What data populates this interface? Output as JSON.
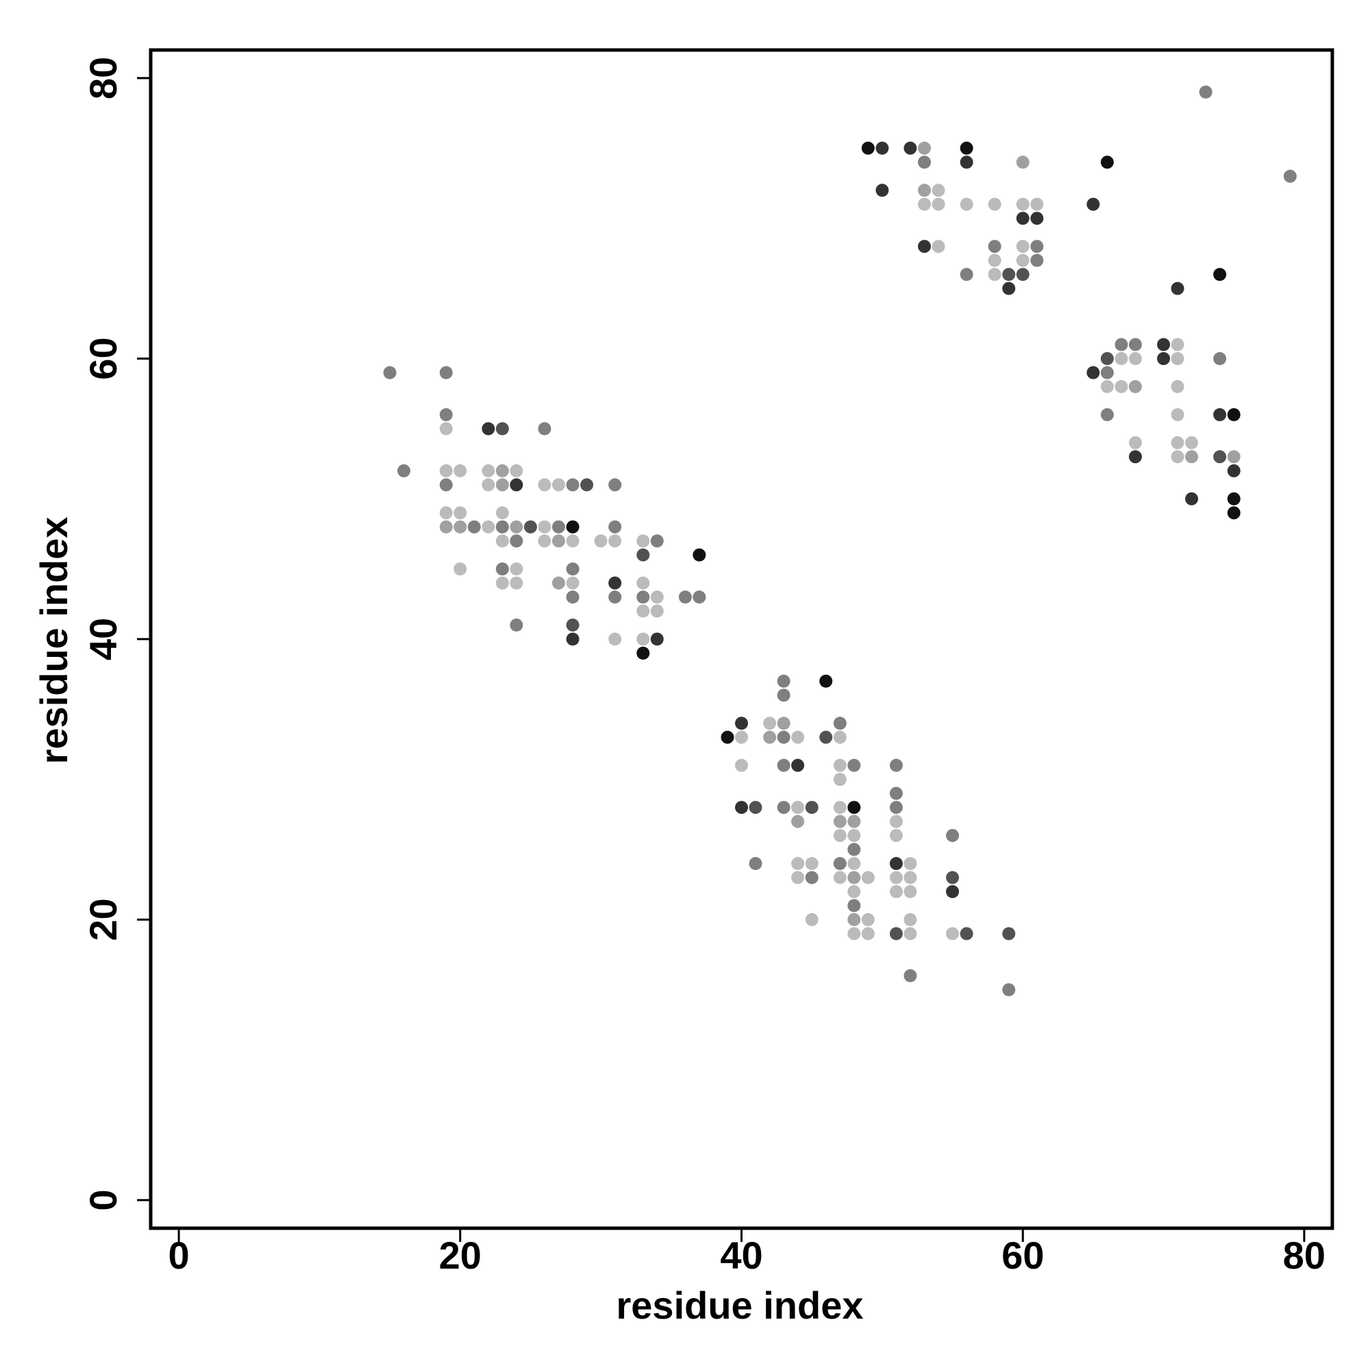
{
  "chart_data": {
    "type": "scatter",
    "title": "",
    "xlabel": "residue index",
    "ylabel": "residue index",
    "xlim": [
      -2,
      82
    ],
    "ylim": [
      -2,
      82
    ],
    "x_ticks": [
      0,
      20,
      40,
      60,
      80
    ],
    "y_ticks": [
      0,
      20,
      40,
      60,
      80
    ],
    "grid": false,
    "legend": "none",
    "shade_colors": {
      "1": "#bbbbbb",
      "2": "#a0a0a0",
      "3": "#7f7f7f",
      "4": "#525252",
      "5": "#333333",
      "6": "#111111"
    },
    "points": [
      [
        15,
        59,
        3
      ],
      [
        16,
        52,
        3
      ],
      [
        19,
        59,
        3
      ],
      [
        19,
        56,
        3
      ],
      [
        19,
        55,
        1
      ],
      [
        19,
        52,
        1
      ],
      [
        19,
        51,
        3
      ],
      [
        19,
        49,
        1
      ],
      [
        19,
        48,
        2
      ],
      [
        20,
        52,
        1
      ],
      [
        20,
        49,
        1
      ],
      [
        20,
        48,
        2
      ],
      [
        20,
        45,
        1
      ],
      [
        21,
        48,
        3
      ],
      [
        22,
        55,
        5
      ],
      [
        22,
        52,
        1
      ],
      [
        22,
        51,
        1
      ],
      [
        22,
        48,
        1
      ],
      [
        23,
        55,
        4
      ],
      [
        23,
        52,
        2
      ],
      [
        23,
        51,
        2
      ],
      [
        23,
        49,
        1
      ],
      [
        23,
        48,
        3
      ],
      [
        23,
        47,
        1
      ],
      [
        23,
        45,
        3
      ],
      [
        23,
        44,
        1
      ],
      [
        24,
        52,
        1
      ],
      [
        24,
        51,
        5
      ],
      [
        24,
        48,
        2
      ],
      [
        24,
        47,
        3
      ],
      [
        24,
        45,
        1
      ],
      [
        24,
        44,
        1
      ],
      [
        24,
        41,
        3
      ],
      [
        25,
        48,
        4
      ],
      [
        26,
        55,
        3
      ],
      [
        26,
        51,
        1
      ],
      [
        26,
        48,
        1
      ],
      [
        26,
        47,
        1
      ],
      [
        27,
        51,
        1
      ],
      [
        27,
        48,
        3
      ],
      [
        27,
        47,
        2
      ],
      [
        27,
        44,
        2
      ],
      [
        28,
        51,
        3
      ],
      [
        28,
        48,
        6
      ],
      [
        28,
        47,
        1
      ],
      [
        28,
        45,
        3
      ],
      [
        28,
        44,
        1
      ],
      [
        28,
        43,
        3
      ],
      [
        28,
        41,
        4
      ],
      [
        28,
        40,
        5
      ],
      [
        29,
        51,
        4
      ],
      [
        30,
        47,
        1
      ],
      [
        31,
        51,
        3
      ],
      [
        31,
        48,
        3
      ],
      [
        31,
        47,
        1
      ],
      [
        31,
        44,
        5
      ],
      [
        31,
        43,
        3
      ],
      [
        31,
        40,
        1
      ],
      [
        33,
        47,
        1
      ],
      [
        33,
        46,
        4
      ],
      [
        33,
        44,
        1
      ],
      [
        33,
        43,
        3
      ],
      [
        33,
        42,
        1
      ],
      [
        33,
        40,
        1
      ],
      [
        33,
        39,
        6
      ],
      [
        34,
        47,
        3
      ],
      [
        34,
        43,
        1
      ],
      [
        34,
        42,
        1
      ],
      [
        34,
        40,
        5
      ],
      [
        36,
        43,
        3
      ],
      [
        37,
        46,
        6
      ],
      [
        37,
        43,
        3
      ],
      [
        39,
        33,
        6
      ],
      [
        40,
        34,
        5
      ],
      [
        40,
        33,
        1
      ],
      [
        40,
        31,
        1
      ],
      [
        40,
        28,
        5
      ],
      [
        41,
        28,
        4
      ],
      [
        41,
        24,
        3
      ],
      [
        42,
        34,
        1
      ],
      [
        42,
        33,
        2
      ],
      [
        43,
        37,
        3
      ],
      [
        43,
        36,
        3
      ],
      [
        43,
        34,
        2
      ],
      [
        43,
        33,
        3
      ],
      [
        43,
        31,
        3
      ],
      [
        43,
        28,
        3
      ],
      [
        44,
        33,
        1
      ],
      [
        44,
        31,
        5
      ],
      [
        44,
        28,
        1
      ],
      [
        44,
        27,
        2
      ],
      [
        44,
        24,
        1
      ],
      [
        44,
        23,
        1
      ],
      [
        45,
        28,
        4
      ],
      [
        45,
        24,
        1
      ],
      [
        45,
        23,
        3
      ],
      [
        45,
        20,
        1
      ],
      [
        46,
        37,
        6
      ],
      [
        46,
        33,
        4
      ],
      [
        47,
        34,
        3
      ],
      [
        47,
        33,
        1
      ],
      [
        47,
        31,
        1
      ],
      [
        47,
        30,
        1
      ],
      [
        47,
        28,
        1
      ],
      [
        47,
        27,
        2
      ],
      [
        47,
        26,
        1
      ],
      [
        47,
        24,
        3
      ],
      [
        47,
        23,
        1
      ],
      [
        48,
        31,
        3
      ],
      [
        48,
        28,
        6
      ],
      [
        48,
        27,
        2
      ],
      [
        48,
        26,
        1
      ],
      [
        48,
        25,
        3
      ],
      [
        48,
        24,
        1
      ],
      [
        48,
        23,
        2
      ],
      [
        48,
        22,
        1
      ],
      [
        48,
        21,
        3
      ],
      [
        48,
        20,
        2
      ],
      [
        48,
        19,
        1
      ],
      [
        49,
        23,
        1
      ],
      [
        49,
        20,
        1
      ],
      [
        49,
        19,
        1
      ],
      [
        51,
        31,
        3
      ],
      [
        51,
        29,
        3
      ],
      [
        51,
        28,
        3
      ],
      [
        51,
        27,
        1
      ],
      [
        51,
        26,
        1
      ],
      [
        51,
        24,
        5
      ],
      [
        51,
        23,
        1
      ],
      [
        51,
        22,
        1
      ],
      [
        51,
        19,
        4
      ],
      [
        52,
        24,
        1
      ],
      [
        52,
        23,
        1
      ],
      [
        52,
        22,
        1
      ],
      [
        52,
        20,
        1
      ],
      [
        52,
        19,
        1
      ],
      [
        52,
        16,
        3
      ],
      [
        55,
        26,
        3
      ],
      [
        55,
        23,
        4
      ],
      [
        55,
        22,
        5
      ],
      [
        55,
        19,
        1
      ],
      [
        56,
        19,
        4
      ],
      [
        59,
        19,
        4
      ],
      [
        59,
        15,
        3
      ],
      [
        49,
        75,
        6
      ],
      [
        50,
        75,
        5
      ],
      [
        50,
        72,
        5
      ],
      [
        52,
        75,
        5
      ],
      [
        53,
        75,
        2
      ],
      [
        53,
        74,
        3
      ],
      [
        53,
        72,
        2
      ],
      [
        53,
        71,
        1
      ],
      [
        53,
        68,
        5
      ],
      [
        54,
        72,
        1
      ],
      [
        54,
        71,
        1
      ],
      [
        54,
        68,
        1
      ],
      [
        56,
        75,
        6
      ],
      [
        56,
        74,
        5
      ],
      [
        56,
        71,
        1
      ],
      [
        56,
        66,
        3
      ],
      [
        58,
        71,
        1
      ],
      [
        58,
        68,
        3
      ],
      [
        58,
        67,
        1
      ],
      [
        58,
        66,
        1
      ],
      [
        59,
        66,
        4
      ],
      [
        59,
        65,
        5
      ],
      [
        60,
        74,
        2
      ],
      [
        60,
        71,
        1
      ],
      [
        60,
        70,
        5
      ],
      [
        60,
        68,
        1
      ],
      [
        60,
        67,
        1
      ],
      [
        60,
        66,
        4
      ],
      [
        61,
        71,
        1
      ],
      [
        61,
        70,
        5
      ],
      [
        61,
        68,
        3
      ],
      [
        61,
        67,
        3
      ],
      [
        65,
        71,
        5
      ],
      [
        66,
        74,
        6
      ],
      [
        65,
        59,
        5
      ],
      [
        66,
        60,
        4
      ],
      [
        66,
        59,
        3
      ],
      [
        66,
        58,
        1
      ],
      [
        66,
        56,
        3
      ],
      [
        67,
        61,
        3
      ],
      [
        67,
        60,
        1
      ],
      [
        67,
        58,
        1
      ],
      [
        68,
        61,
        3
      ],
      [
        68,
        60,
        1
      ],
      [
        68,
        58,
        2
      ],
      [
        68,
        54,
        1
      ],
      [
        68,
        53,
        5
      ],
      [
        70,
        61,
        5
      ],
      [
        70,
        60,
        5
      ],
      [
        71,
        65,
        5
      ],
      [
        71,
        61,
        1
      ],
      [
        71,
        60,
        1
      ],
      [
        71,
        58,
        1
      ],
      [
        71,
        56,
        1
      ],
      [
        71,
        54,
        1
      ],
      [
        71,
        53,
        1
      ],
      [
        72,
        54,
        1
      ],
      [
        72,
        53,
        2
      ],
      [
        72,
        50,
        5
      ],
      [
        73,
        79,
        3
      ],
      [
        74,
        66,
        6
      ],
      [
        74,
        60,
        3
      ],
      [
        74,
        56,
        5
      ],
      [
        74,
        53,
        4
      ],
      [
        75,
        56,
        6
      ],
      [
        75,
        53,
        2
      ],
      [
        75,
        52,
        5
      ],
      [
        75,
        50,
        6
      ],
      [
        75,
        49,
        6
      ],
      [
        79,
        73,
        3
      ]
    ]
  }
}
